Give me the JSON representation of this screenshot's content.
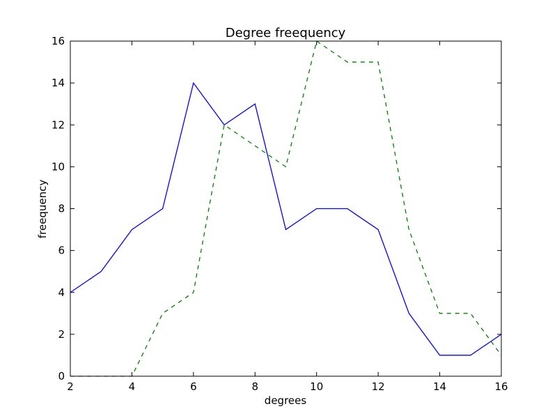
{
  "chart_data": {
    "type": "line",
    "title": "Degree freequency",
    "xlabel": "degrees",
    "ylabel": "freequency",
    "xlim": [
      2,
      16
    ],
    "ylim": [
      0,
      16
    ],
    "xticks": [
      2,
      4,
      6,
      8,
      10,
      12,
      14,
      16
    ],
    "yticks": [
      0,
      2,
      4,
      6,
      8,
      10,
      12,
      14,
      16
    ],
    "grid": false,
    "x": [
      2,
      3,
      4,
      5,
      6,
      7,
      8,
      9,
      10,
      11,
      12,
      13,
      14,
      15,
      16
    ],
    "series": [
      {
        "values": [
          4,
          5,
          7,
          8,
          14,
          12,
          13,
          7,
          8,
          8,
          7,
          3,
          1,
          1,
          2
        ],
        "color": "#0000ff",
        "style": "solid"
      },
      {
        "values": [
          0,
          0,
          0,
          3,
          4,
          12,
          11,
          10,
          16,
          15,
          15,
          7,
          3,
          3,
          1
        ],
        "color": "#008000",
        "style": "dashed"
      }
    ]
  }
}
